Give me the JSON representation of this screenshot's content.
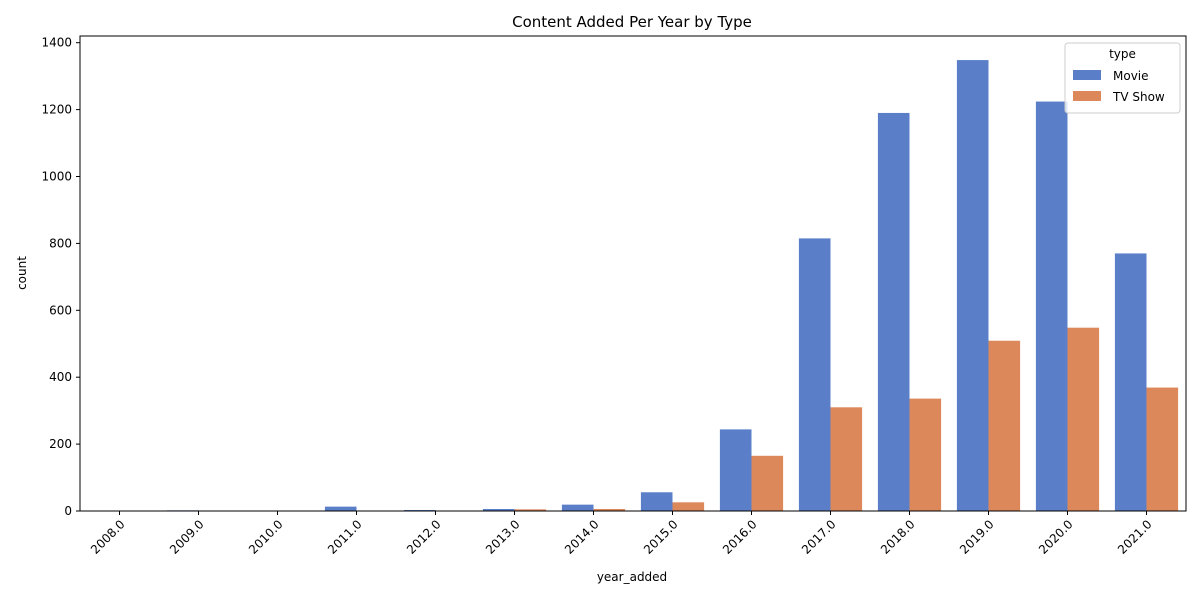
{
  "chart_data": {
    "type": "bar",
    "title": "Content Added Per Year by Type",
    "xlabel": "year_added",
    "ylabel": "count",
    "categories": [
      "2008.0",
      "2009.0",
      "2010.0",
      "2011.0",
      "2012.0",
      "2013.0",
      "2014.0",
      "2015.0",
      "2016.0",
      "2017.0",
      "2018.0",
      "2019.0",
      "2020.0",
      "2021.0"
    ],
    "series": [
      {
        "name": "Movie",
        "color": "#5a7fc8",
        "values": [
          1,
          2,
          1,
          13,
          3,
          6,
          19,
          56,
          244,
          815,
          1190,
          1348,
          1224,
          770
        ]
      },
      {
        "name": "TV Show",
        "color": "#dd885a",
        "values": [
          1,
          0,
          0,
          1,
          0,
          5,
          6,
          26,
          165,
          310,
          336,
          509,
          548,
          369
        ]
      }
    ],
    "ylim": [
      0,
      1420
    ],
    "yticks": [
      0,
      200,
      400,
      600,
      800,
      1000,
      1200,
      1400
    ],
    "legend": {
      "title": "type",
      "placement": "top-right"
    },
    "grid": false
  }
}
